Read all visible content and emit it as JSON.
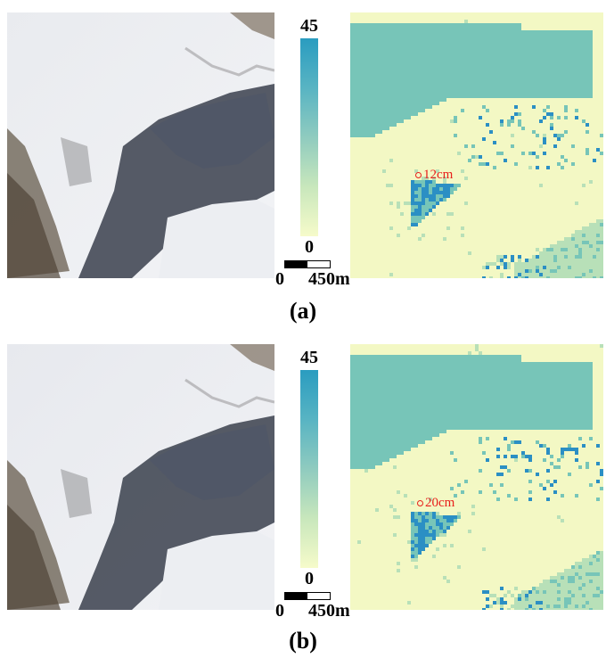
{
  "panels": [
    {
      "caption": "(a)",
      "colorbar": {
        "max_label": "45",
        "min_label": "0",
        "min": 0,
        "max": 45,
        "colors": [
          "#f6fbca",
          "#c8e7bc",
          "#8fcbbf",
          "#58b4c3",
          "#2a9cc0"
        ]
      },
      "scale_bar": {
        "start_label": "0",
        "end_label": "450m"
      },
      "annotation": {
        "text": "12cm"
      }
    },
    {
      "caption": "(b)",
      "colorbar": {
        "max_label": "45",
        "min_label": "0",
        "min": 0,
        "max": 45,
        "colors": [
          "#f6fbca",
          "#c8e7bc",
          "#8fcbbf",
          "#58b4c3",
          "#2a9cc0"
        ]
      },
      "scale_bar": {
        "start_label": "0",
        "end_label": "450m"
      },
      "annotation": {
        "text": "20cm"
      }
    }
  ],
  "map_colors": {
    "low": "#f3f8c4",
    "mid": "#b8e0b8",
    "high": "#77c5b8",
    "very_high": "#2b8fc4"
  }
}
